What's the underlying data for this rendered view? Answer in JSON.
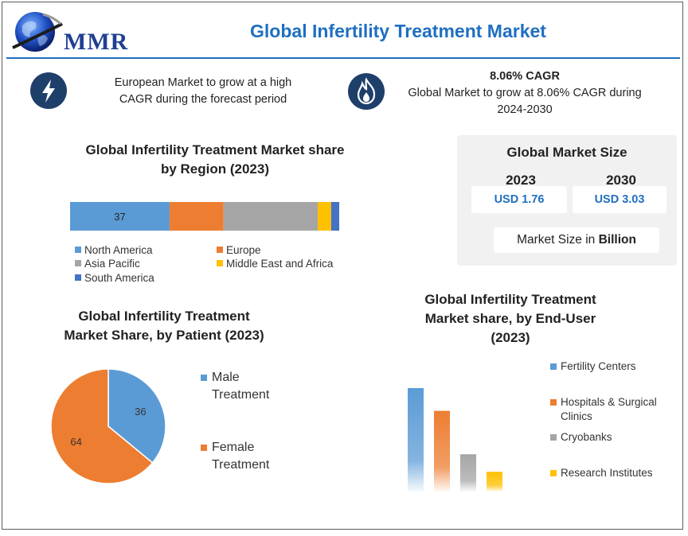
{
  "header": {
    "logo_text": "MMR",
    "title": "Global Infertility Treatment Market"
  },
  "highlights": {
    "left_line1": "European Market to grow at a high",
    "left_line2": "CAGR during the forecast period",
    "right_cagr": "8.06% CAGR",
    "right_line1": "Global Market to grow at 8.06% CAGR during",
    "right_line2": "2024-2030",
    "left_icon": "lightning-icon",
    "right_icon": "flame-icon"
  },
  "market_size": {
    "title": "Global Market Size",
    "year1": "2023",
    "year2": "2030",
    "value1": "USD 1.76",
    "value2": "USD 3.03",
    "unit_prefix": "Market Size in ",
    "unit_bold": "Billion"
  },
  "chart_data": [
    {
      "type": "bar",
      "orientation": "horizontal-stacked",
      "title_line1": "Global Infertility Treatment Market share",
      "title_line2": "by Region (2023)",
      "series": [
        {
          "name": "North America",
          "value": 37,
          "color": "#5b9bd5",
          "label": "37"
        },
        {
          "name": "Europe",
          "value": 20,
          "color": "#ed7d31",
          "label": ""
        },
        {
          "name": "Asia Pacific",
          "value": 35,
          "color": "#a5a5a5",
          "label": ""
        },
        {
          "name": "Middle East and Africa",
          "value": 5,
          "color": "#ffc000",
          "label": ""
        },
        {
          "name": "South America",
          "value": 3,
          "color": "#4472c4",
          "label": ""
        }
      ],
      "legend_placement": "bottom"
    },
    {
      "type": "pie",
      "title_line1": "Global Infertility Treatment",
      "title_line2": "Market Share, by Patient (2023)",
      "slices": [
        {
          "name_line1": "Male",
          "name_line2": "Treatment",
          "value": 36,
          "color": "#5b9bd5",
          "label": "36"
        },
        {
          "name_line1": "Female",
          "name_line2": "Treatment",
          "value": 64,
          "color": "#ed7d31",
          "label": "64"
        }
      ],
      "legend_placement": "right"
    },
    {
      "type": "bar",
      "title_line1": "Global Infertility Treatment",
      "title_line2": "Market share, by End-User",
      "title_line3": "(2023)",
      "series": [
        {
          "name_line1": "Fertility Centers",
          "name_line2": "",
          "value": 100,
          "color": "#5b9bd5"
        },
        {
          "name_line1": "Hospitals & Surgical",
          "name_line2": "Clinics",
          "value": 78,
          "color": "#ed7d31"
        },
        {
          "name_line1": "Cryobanks",
          "name_line2": "",
          "value": 36,
          "color": "#a5a5a5"
        },
        {
          "name_line1": "Research Institutes",
          "name_line2": "",
          "value": 19,
          "color": "#ffc000"
        }
      ],
      "legend_placement": "right",
      "ylim": [
        0,
        100
      ]
    }
  ]
}
